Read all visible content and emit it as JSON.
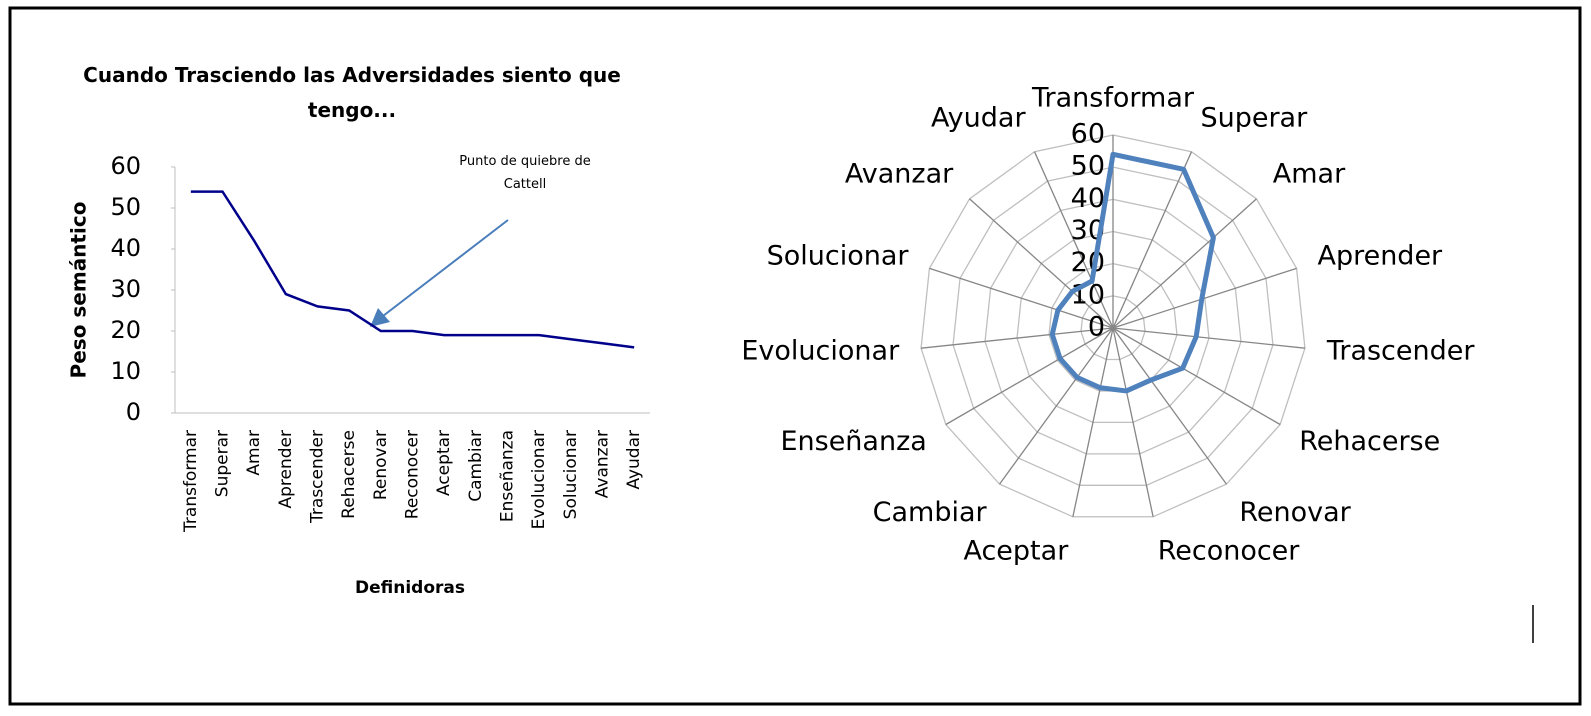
{
  "chart_data": [
    {
      "type": "line",
      "title": "Cuando Trasciendo las Adversidades siento que tengo...",
      "xlabel": "Definidoras",
      "ylabel": "Peso semántico",
      "annotation": "Punto de quiebre de Cattell",
      "categories": [
        "Transformar",
        "Superar",
        "Amar",
        "Aprender",
        "Trascender",
        "Rehacerse",
        "Renovar",
        "Reconocer",
        "Aceptar",
        "Cambiar",
        "Enseñanza",
        "Evolucionar",
        "Solucionar",
        "Avanzar",
        "Ayudar"
      ],
      "values": [
        54,
        54,
        42,
        29,
        26,
        25,
        20,
        20,
        19,
        19,
        19,
        19,
        18,
        17,
        16
      ],
      "color": "#00008b",
      "ylim": [
        0,
        60
      ],
      "yticks": [
        0,
        10,
        20,
        30,
        40,
        50,
        60
      ]
    },
    {
      "type": "radar",
      "categories": [
        "Transformar",
        "Superar",
        "Amar",
        "Aprender",
        "Trascender",
        "Rehacerse",
        "Renovar",
        "Reconocer",
        "Aceptar",
        "Cambiar",
        "Enseñanza",
        "Evolucionar",
        "Solucionar",
        "Avanzar",
        "Ayudar"
      ],
      "values": [
        54,
        54,
        42,
        29,
        26,
        25,
        20,
        20,
        19,
        19,
        19,
        19,
        18,
        17,
        16
      ],
      "color": "#4f81bd",
      "ylim": [
        0,
        60
      ],
      "yticks": [
        0,
        10,
        20,
        30,
        40,
        50,
        60
      ]
    }
  ]
}
